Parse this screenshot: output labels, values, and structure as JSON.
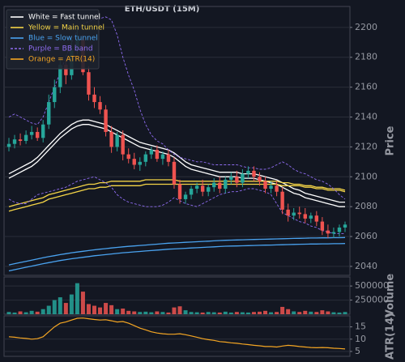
{
  "chart_data": [
    {
      "type": "candlestick",
      "title": "ETH/USDT (15M)",
      "ylabel": "Price",
      "ylim": [
        2034,
        2214
      ],
      "yticks": [
        2040,
        2060,
        2080,
        2100,
        2120,
        2140,
        2160,
        2180,
        2200
      ],
      "grid": true,
      "legend": "upper left",
      "up_color": "#26a69a",
      "down_color": "#ef5350",
      "open": [
        2120,
        2122,
        2125,
        2124,
        2128,
        2130,
        2126,
        2135,
        2150,
        2160,
        2175,
        2168,
        2185,
        2192,
        2170,
        2155,
        2150,
        2145,
        2130,
        2120,
        2128,
        2115,
        2112,
        2108,
        2110,
        2115,
        2118,
        2112,
        2115,
        2110,
        2095,
        2085,
        2088,
        2092,
        2094,
        2090,
        2093,
        2096,
        2092,
        2098,
        2100,
        2096,
        2102,
        2104,
        2100,
        2097,
        2092,
        2094,
        2090,
        2078,
        2074,
        2076,
        2075,
        2072,
        2074,
        2070,
        2064,
        2062,
        2063,
        2066
      ],
      "high": [
        2126,
        2128,
        2129,
        2131,
        2134,
        2133,
        2138,
        2155,
        2165,
        2180,
        2178,
        2192,
        2200,
        2195,
        2174,
        2160,
        2154,
        2148,
        2134,
        2130,
        2131,
        2119,
        2116,
        2113,
        2117,
        2120,
        2121,
        2117,
        2118,
        2113,
        2098,
        2090,
        2094,
        2096,
        2098,
        2095,
        2099,
        2100,
        2100,
        2103,
        2104,
        2105,
        2107,
        2107,
        2103,
        2100,
        2097,
        2097,
        2093,
        2082,
        2079,
        2080,
        2079,
        2076,
        2077,
        2073,
        2068,
        2066,
        2068,
        2070
      ],
      "low": [
        2117,
        2119,
        2121,
        2122,
        2125,
        2124,
        2123,
        2132,
        2146,
        2156,
        2162,
        2165,
        2182,
        2168,
        2151,
        2146,
        2142,
        2127,
        2116,
        2117,
        2111,
        2109,
        2105,
        2104,
        2107,
        2112,
        2110,
        2108,
        2107,
        2092,
        2082,
        2082,
        2085,
        2089,
        2087,
        2087,
        2090,
        2089,
        2089,
        2095,
        2093,
        2093,
        2099,
        2097,
        2094,
        2089,
        2089,
        2087,
        2075,
        2070,
        2071,
        2072,
        2069,
        2069,
        2067,
        2061,
        2059,
        2059,
        2060,
        2063
      ],
      "close": [
        2122,
        2125,
        2124,
        2128,
        2130,
        2126,
        2135,
        2150,
        2160,
        2175,
        2168,
        2185,
        2192,
        2170,
        2155,
        2150,
        2145,
        2130,
        2120,
        2128,
        2115,
        2112,
        2108,
        2110,
        2115,
        2118,
        2112,
        2115,
        2110,
        2095,
        2085,
        2088,
        2092,
        2094,
        2090,
        2093,
        2096,
        2092,
        2098,
        2100,
        2096,
        2102,
        2104,
        2100,
        2097,
        2092,
        2094,
        2090,
        2078,
        2074,
        2076,
        2075,
        2072,
        2074,
        2070,
        2064,
        2062,
        2063,
        2066,
        2068
      ],
      "series": [
        {
          "name": "White = Fast tunnel",
          "color": "#ffffff",
          "dash": false,
          "upper": [
            2102,
            2104,
            2106,
            2108,
            2110,
            2113,
            2117,
            2121,
            2125,
            2129,
            2132,
            2135,
            2137,
            2138,
            2138,
            2137,
            2136,
            2135,
            2133,
            2131,
            2129,
            2127,
            2125,
            2123,
            2122,
            2121,
            2120,
            2119,
            2118,
            2116,
            2113,
            2110,
            2108,
            2107,
            2106,
            2105,
            2104,
            2103,
            2103,
            2103,
            2103,
            2102,
            2102,
            2102,
            2101,
            2100,
            2099,
            2098,
            2096,
            2094,
            2092,
            2091,
            2089,
            2088,
            2087,
            2086,
            2085,
            2084,
            2083,
            2083
          ],
          "lower": [
            2099,
            2101,
            2103,
            2105,
            2107,
            2110,
            2114,
            2118,
            2122,
            2126,
            2129,
            2132,
            2134,
            2135,
            2135,
            2134,
            2133,
            2132,
            2130,
            2128,
            2126,
            2124,
            2122,
            2120,
            2119,
            2118,
            2117,
            2116,
            2115,
            2113,
            2110,
            2107,
            2105,
            2104,
            2103,
            2102,
            2101,
            2100,
            2100,
            2100,
            2100,
            2099,
            2099,
            2099,
            2098,
            2097,
            2096,
            2095,
            2093,
            2091,
            2089,
            2088,
            2086,
            2085,
            2084,
            2083,
            2082,
            2081,
            2080,
            2080
          ]
        },
        {
          "name": "Yellow = Main tunnel",
          "color": "#f5d547",
          "dash": false,
          "upper": [
            2080,
            2081,
            2082,
            2083,
            2084,
            2085,
            2086,
            2088,
            2089,
            2090,
            2091,
            2092,
            2093,
            2094,
            2095,
            2095,
            2096,
            2096,
            2097,
            2097,
            2097,
            2097,
            2097,
            2097,
            2098,
            2098,
            2098,
            2098,
            2098,
            2098,
            2097,
            2097,
            2097,
            2097,
            2097,
            2097,
            2097,
            2097,
            2097,
            2097,
            2097,
            2097,
            2097,
            2097,
            2097,
            2097,
            2097,
            2097,
            2096,
            2096,
            2095,
            2095,
            2094,
            2094,
            2093,
            2093,
            2092,
            2092,
            2092,
            2091
          ],
          "lower": [
            2077,
            2078,
            2079,
            2080,
            2081,
            2082,
            2083,
            2085,
            2086,
            2087,
            2088,
            2089,
            2090,
            2091,
            2092,
            2092,
            2093,
            2093,
            2094,
            2094,
            2094,
            2094,
            2094,
            2094,
            2095,
            2095,
            2095,
            2095,
            2095,
            2095,
            2095,
            2095,
            2095,
            2095,
            2095,
            2095,
            2095,
            2095,
            2095,
            2095,
            2095,
            2095,
            2095,
            2095,
            2095,
            2095,
            2095,
            2095,
            2094,
            2094,
            2094,
            2094,
            2093,
            2093,
            2092,
            2092,
            2091,
            2091,
            2091,
            2090
          ]
        },
        {
          "name": "Blue = Slow tunnel",
          "color": "#4aa3f0",
          "dash": false,
          "upper": [
            2041,
            2041.8,
            2042.6,
            2043.4,
            2044.2,
            2045,
            2045.8,
            2046.5,
            2047.2,
            2047.9,
            2048.5,
            2049.1,
            2049.6,
            2050.1,
            2050.6,
            2051.1,
            2051.5,
            2051.9,
            2052.3,
            2052.7,
            2053.1,
            2053.4,
            2053.7,
            2054,
            2054.3,
            2054.6,
            2054.9,
            2055.2,
            2055.5,
            2055.7,
            2055.9,
            2056.1,
            2056.3,
            2056.5,
            2056.7,
            2056.9,
            2057.1,
            2057.3,
            2057.5,
            2057.6,
            2057.7,
            2057.8,
            2057.9,
            2058,
            2058.1,
            2058.2,
            2058.3,
            2058.4,
            2058.5,
            2058.6,
            2058.7,
            2058.8,
            2058.9,
            2059,
            2059,
            2059.1,
            2059.1,
            2059.2,
            2059.2,
            2059.3
          ],
          "lower": [
            2037,
            2037.8,
            2038.6,
            2039.4,
            2040.2,
            2041,
            2041.8,
            2042.5,
            2043.2,
            2043.9,
            2044.5,
            2045.1,
            2045.6,
            2046.1,
            2046.6,
            2047.1,
            2047.5,
            2047.9,
            2048.3,
            2048.7,
            2049.1,
            2049.4,
            2049.7,
            2050,
            2050.3,
            2050.6,
            2050.9,
            2051.2,
            2051.5,
            2051.7,
            2051.9,
            2052.1,
            2052.3,
            2052.5,
            2052.7,
            2052.9,
            2053.1,
            2053.3,
            2053.5,
            2053.6,
            2053.7,
            2053.8,
            2053.9,
            2054,
            2054.1,
            2054.2,
            2054.3,
            2054.4,
            2054.5,
            2054.6,
            2054.7,
            2054.8,
            2054.9,
            2055,
            2055,
            2055.1,
            2055.1,
            2055.2,
            2055.2,
            2055.3
          ]
        },
        {
          "name": "Purple = BB band",
          "color": "#8e6cf0",
          "dash": true,
          "upper": [
            2140,
            2142,
            2140,
            2138,
            2136,
            2135,
            2140,
            2150,
            2160,
            2170,
            2180,
            2190,
            2198,
            2202,
            2204,
            2205,
            2206,
            2207,
            2205,
            2195,
            2180,
            2168,
            2158,
            2145,
            2135,
            2128,
            2124,
            2122,
            2118,
            2115,
            2113,
            2112,
            2111,
            2110,
            2110,
            2109,
            2108,
            2108,
            2108,
            2108,
            2108,
            2107,
            2106,
            2106,
            2105,
            2105,
            2106,
            2108,
            2110,
            2108,
            2105,
            2103,
            2102,
            2100,
            2098,
            2097,
            2095,
            2092,
            2088,
            2085
          ],
          "lower": [
            2085,
            2083,
            2082,
            2082,
            2085,
            2088,
            2089,
            2090,
            2091,
            2092,
            2093,
            2095,
            2097,
            2098,
            2099,
            2100,
            2098,
            2096,
            2093,
            2088,
            2085,
            2083,
            2082,
            2081,
            2080,
            2080,
            2080,
            2081,
            2083,
            2086,
            2084,
            2082,
            2081,
            2080,
            2082,
            2084,
            2086,
            2088,
            2089,
            2090,
            2090,
            2091,
            2092,
            2092,
            2091,
            2090,
            2088,
            2082,
            2076,
            2074,
            2072,
            2070,
            2069,
            2067,
            2066,
            2064,
            2063,
            2062,
            2062,
            2062
          ]
        }
      ]
    },
    {
      "type": "bar",
      "ylabel": "Volume",
      "ylim": [
        0,
        660000
      ],
      "yticks": [
        250000,
        500000
      ],
      "grid": true,
      "values": [
        40000,
        30000,
        50000,
        35000,
        60000,
        45000,
        90000,
        150000,
        250000,
        300000,
        200000,
        350000,
        550000,
        400000,
        180000,
        150000,
        120000,
        200000,
        160000,
        90000,
        100000,
        60000,
        50000,
        40000,
        45000,
        35000,
        50000,
        40000,
        30000,
        120000,
        140000,
        70000,
        40000,
        35000,
        30000,
        40000,
        35000,
        30000,
        45000,
        30000,
        40000,
        35000,
        30000,
        40000,
        45000,
        60000,
        35000,
        40000,
        130000,
        90000,
        50000,
        40000,
        60000,
        45000,
        40000,
        70000,
        50000,
        35000,
        30000,
        40000
      ]
    },
    {
      "type": "line",
      "ylabel": "ATR(14)",
      "ylim": [
        3,
        19.5
      ],
      "yticks": [
        5,
        10,
        15
      ],
      "grid": true,
      "series": [
        {
          "name": "Orange = ATR(14)",
          "color": "#f5a623",
          "values": [
            11,
            10.8,
            10.5,
            10.3,
            10,
            10.2,
            11,
            13,
            15,
            16.5,
            17,
            17.8,
            18.5,
            18.6,
            18.3,
            18,
            17.8,
            17.9,
            17.5,
            17,
            17.2,
            16.5,
            15.5,
            14.5,
            13.8,
            13,
            12.5,
            12.2,
            12,
            12,
            12.2,
            11.8,
            11.3,
            10.8,
            10.2,
            9.8,
            9.5,
            9,
            8.8,
            8.5,
            8.3,
            8,
            7.8,
            7.5,
            7.3,
            7,
            7,
            6.8,
            7.2,
            7.5,
            7.3,
            7,
            6.8,
            6.6,
            6.5,
            6.6,
            6.5,
            6.3,
            6.2,
            6
          ]
        }
      ]
    }
  ]
}
